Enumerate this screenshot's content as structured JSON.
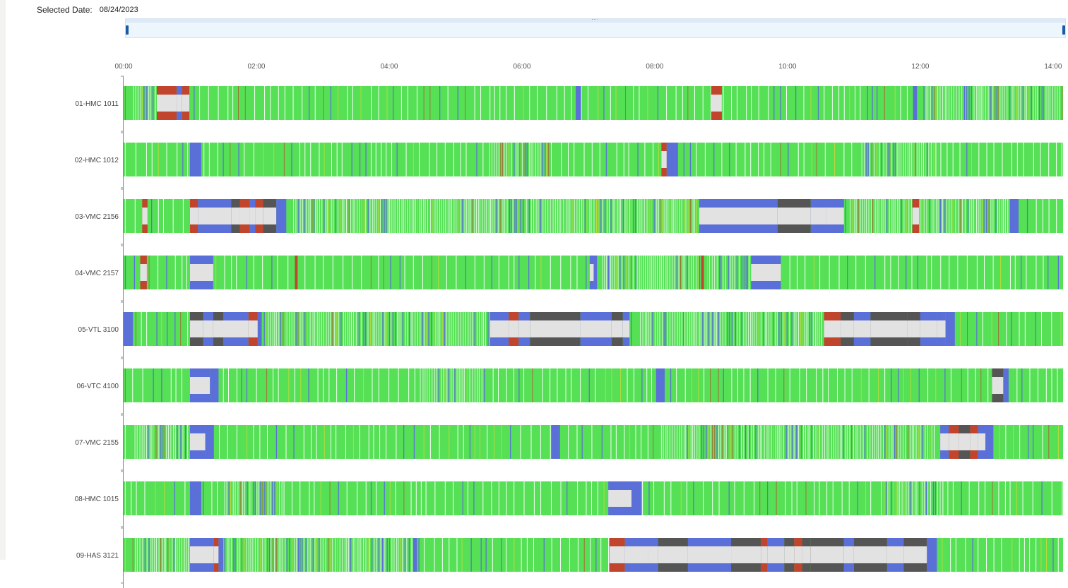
{
  "header": {
    "selected_date_label": "Selected Date:",
    "selected_date_value": "08/24/2023"
  },
  "colors": {
    "running": "#55e055",
    "idle_blue": "#5b6fd8",
    "alarm_red": "#c0452c",
    "setup_dark": "#555555",
    "off_light": "#e2e2e2",
    "yellow_flicker": "#c6d83a"
  },
  "chart_data": {
    "type": "timeline",
    "x_range_hours": [
      0,
      14.15
    ],
    "x_ticks": [
      {
        "h": 0,
        "label": "00:00"
      },
      {
        "h": 2,
        "label": "02:00"
      },
      {
        "h": 4,
        "label": "04:00"
      },
      {
        "h": 6,
        "label": "06:00"
      },
      {
        "h": 8,
        "label": "08:00"
      },
      {
        "h": 10,
        "label": "10:00"
      },
      {
        "h": 12,
        "label": "12:00"
      },
      {
        "h": 14,
        "label": "14:00"
      }
    ],
    "rows": [
      {
        "name": "01-HMC 1011",
        "segments": [
          {
            "s": 0.5,
            "e": 0.8,
            "top": "alarm_red",
            "mid": "off_light"
          },
          {
            "s": 0.8,
            "e": 0.88,
            "top": "idle_blue",
            "mid": "off_light"
          },
          {
            "s": 0.88,
            "e": 0.99,
            "top": "alarm_red",
            "mid": "off_light"
          },
          {
            "s": 6.81,
            "e": 6.89,
            "top": "idle_blue",
            "mid": "idle_blue"
          },
          {
            "s": 8.85,
            "e": 9.01,
            "top": "alarm_red",
            "mid": "off_light"
          },
          {
            "s": 11.89,
            "e": 11.95,
            "top": "idle_blue",
            "mid": "idle_blue"
          }
        ],
        "dense": [
          [
            0.05,
            0.45
          ],
          [
            11.95,
            14.15
          ]
        ]
      },
      {
        "name": "02-HMC 1012",
        "segments": [
          {
            "s": 1.0,
            "e": 1.17,
            "top": "idle_blue",
            "mid": "idle_blue"
          },
          {
            "s": 8.1,
            "e": 8.18,
            "top": "alarm_red",
            "mid": "off_light"
          },
          {
            "s": 8.18,
            "e": 8.35,
            "top": "idle_blue",
            "mid": "idle_blue"
          }
        ],
        "dense": [
          [
            5.5,
            6.4
          ],
          [
            11.1,
            12.2
          ]
        ]
      },
      {
        "name": "03-VMC 2156",
        "segments": [
          {
            "s": 0.28,
            "e": 0.36,
            "top": "alarm_red",
            "mid": "off_light"
          },
          {
            "s": 1.0,
            "e": 1.12,
            "top": "alarm_red",
            "mid": "off_light"
          },
          {
            "s": 1.12,
            "e": 1.62,
            "top": "idle_blue",
            "mid": "off_light"
          },
          {
            "s": 1.62,
            "e": 1.75,
            "top": "setup_dark",
            "mid": "off_light"
          },
          {
            "s": 1.75,
            "e": 1.9,
            "top": "alarm_red",
            "mid": "off_light"
          },
          {
            "s": 1.9,
            "e": 1.98,
            "top": "idle_blue",
            "mid": "off_light"
          },
          {
            "s": 1.98,
            "e": 2.1,
            "top": "alarm_red",
            "mid": "off_light"
          },
          {
            "s": 2.1,
            "e": 2.3,
            "top": "setup_dark",
            "mid": "off_light"
          },
          {
            "s": 2.3,
            "e": 2.45,
            "top": "idle_blue",
            "mid": "idle_blue"
          },
          {
            "s": 8.67,
            "e": 9.85,
            "top": "idle_blue",
            "mid": "off_light"
          },
          {
            "s": 9.85,
            "e": 10.35,
            "top": "setup_dark",
            "mid": "off_light"
          },
          {
            "s": 10.35,
            "e": 10.58,
            "top": "idle_blue",
            "mid": "off_light"
          },
          {
            "s": 10.58,
            "e": 10.85,
            "top": "idle_blue",
            "mid": "off_light"
          },
          {
            "s": 11.88,
            "e": 11.98,
            "top": "alarm_red",
            "mid": "off_light"
          },
          {
            "s": 13.35,
            "e": 13.48,
            "top": "idle_blue",
            "mid": "idle_blue"
          }
        ],
        "dense": [
          [
            2.45,
            8.6
          ],
          [
            10.9,
            13.3
          ]
        ]
      },
      {
        "name": "04-VMC 2157",
        "segments": [
          {
            "s": 0.25,
            "e": 0.35,
            "top": "alarm_red",
            "mid": "off_light"
          },
          {
            "s": 1.0,
            "e": 1.35,
            "top": "idle_blue",
            "mid": "off_light"
          },
          {
            "s": 2.58,
            "e": 2.62,
            "top": "alarm_red",
            "mid": "alarm_red"
          },
          {
            "s": 7.02,
            "e": 7.08,
            "top": "idle_blue",
            "mid": "off_light"
          },
          {
            "s": 7.08,
            "e": 7.13,
            "top": "idle_blue",
            "mid": "idle_blue"
          },
          {
            "s": 8.7,
            "e": 8.74,
            "top": "alarm_red",
            "mid": "alarm_red"
          },
          {
            "s": 9.45,
            "e": 9.9,
            "top": "idle_blue",
            "mid": "off_light"
          }
        ],
        "dense": [
          [
            7.15,
            8.65
          ],
          [
            8.75,
            9.4
          ]
        ]
      },
      {
        "name": "05-VTL 3100",
        "segments": [
          {
            "s": 0.0,
            "e": 0.14,
            "top": "idle_blue",
            "mid": "idle_blue"
          },
          {
            "s": 1.0,
            "e": 1.2,
            "top": "setup_dark",
            "mid": "off_light"
          },
          {
            "s": 1.2,
            "e": 1.35,
            "top": "idle_blue",
            "mid": "off_light"
          },
          {
            "s": 1.35,
            "e": 1.5,
            "top": "setup_dark",
            "mid": "off_light"
          },
          {
            "s": 1.5,
            "e": 1.88,
            "top": "idle_blue",
            "mid": "off_light"
          },
          {
            "s": 1.88,
            "e": 2.02,
            "top": "alarm_red",
            "mid": "off_light"
          },
          {
            "s": 2.02,
            "e": 2.08,
            "top": "idle_blue",
            "mid": "idle_blue"
          },
          {
            "s": 5.52,
            "e": 5.8,
            "top": "idle_blue",
            "mid": "off_light"
          },
          {
            "s": 5.8,
            "e": 5.95,
            "top": "alarm_red",
            "mid": "off_light"
          },
          {
            "s": 5.95,
            "e": 6.12,
            "top": "idle_blue",
            "mid": "off_light"
          },
          {
            "s": 6.12,
            "e": 6.88,
            "top": "setup_dark",
            "mid": "off_light"
          },
          {
            "s": 6.88,
            "e": 7.35,
            "top": "idle_blue",
            "mid": "off_light"
          },
          {
            "s": 7.35,
            "e": 7.52,
            "top": "setup_dark",
            "mid": "off_light"
          },
          {
            "s": 7.52,
            "e": 7.62,
            "top": "idle_blue",
            "mid": "off_light"
          },
          {
            "s": 10.55,
            "e": 10.8,
            "top": "alarm_red",
            "mid": "off_light"
          },
          {
            "s": 10.8,
            "e": 11.0,
            "top": "setup_dark",
            "mid": "off_light"
          },
          {
            "s": 11.0,
            "e": 11.25,
            "top": "idle_blue",
            "mid": "off_light"
          },
          {
            "s": 11.25,
            "e": 11.8,
            "top": "setup_dark",
            "mid": "off_light"
          },
          {
            "s": 11.8,
            "e": 12.0,
            "top": "setup_dark",
            "mid": "off_light"
          },
          {
            "s": 12.0,
            "e": 12.25,
            "top": "idle_blue",
            "mid": "off_light"
          },
          {
            "s": 12.25,
            "e": 12.38,
            "top": "idle_blue",
            "mid": "off_light"
          },
          {
            "s": 12.38,
            "e": 12.52,
            "top": "idle_blue",
            "mid": "idle_blue"
          }
        ],
        "dense": [
          [
            2.1,
            5.45
          ],
          [
            7.7,
            10.5
          ]
        ]
      },
      {
        "name": "06-VTC 4100",
        "segments": [
          {
            "s": 1.0,
            "e": 1.3,
            "top": "idle_blue",
            "mid": "off_light"
          },
          {
            "s": 1.3,
            "e": 1.43,
            "top": "idle_blue",
            "mid": "idle_blue"
          },
          {
            "s": 8.02,
            "e": 8.15,
            "top": "idle_blue",
            "mid": "idle_blue"
          },
          {
            "s": 13.08,
            "e": 13.25,
            "top": "setup_dark",
            "mid": "off_light"
          },
          {
            "s": 13.25,
            "e": 13.33,
            "top": "idle_blue",
            "mid": "idle_blue"
          }
        ],
        "dense": [
          [
            4.4,
            5.4
          ]
        ]
      },
      {
        "name": "07-VMC 2155",
        "segments": [
          {
            "s": 1.0,
            "e": 1.23,
            "top": "idle_blue",
            "mid": "off_light"
          },
          {
            "s": 1.23,
            "e": 1.36,
            "top": "idle_blue",
            "mid": "idle_blue"
          },
          {
            "s": 6.44,
            "e": 6.56,
            "top": "idle_blue",
            "mid": "idle_blue"
          },
          {
            "s": 12.3,
            "e": 12.43,
            "top": "idle_blue",
            "mid": "off_light"
          },
          {
            "s": 12.43,
            "e": 12.58,
            "top": "alarm_red",
            "mid": "off_light"
          },
          {
            "s": 12.58,
            "e": 12.75,
            "top": "setup_dark",
            "mid": "off_light"
          },
          {
            "s": 12.75,
            "e": 12.87,
            "top": "alarm_red",
            "mid": "off_light"
          },
          {
            "s": 12.87,
            "e": 12.98,
            "top": "idle_blue",
            "mid": "off_light"
          },
          {
            "s": 12.98,
            "e": 13.1,
            "top": "idle_blue",
            "mid": "idle_blue"
          }
        ],
        "dense": [
          [
            0.05,
            0.95
          ],
          [
            8.0,
            12.2
          ]
        ]
      },
      {
        "name": "08-HMC 1015",
        "segments": [
          {
            "s": 1.0,
            "e": 1.17,
            "top": "idle_blue",
            "mid": "idle_blue"
          },
          {
            "s": 7.3,
            "e": 7.65,
            "top": "idle_blue",
            "mid": "off_light"
          },
          {
            "s": 7.65,
            "e": 7.8,
            "top": "idle_blue",
            "mid": "idle_blue"
          }
        ],
        "dense": [
          [
            1.5,
            2.4
          ],
          [
            11.3,
            12.3
          ]
        ]
      },
      {
        "name": "09-HAS 3121",
        "segments": [
          {
            "s": 1.0,
            "e": 1.36,
            "top": "idle_blue",
            "mid": "off_light"
          },
          {
            "s": 1.36,
            "e": 1.43,
            "top": "alarm_red",
            "mid": "off_light"
          },
          {
            "s": 1.43,
            "e": 1.5,
            "top": "idle_blue",
            "mid": "idle_blue"
          },
          {
            "s": 4.36,
            "e": 4.42,
            "top": "idle_blue",
            "mid": "idle_blue"
          },
          {
            "s": 7.32,
            "e": 7.55,
            "top": "alarm_red",
            "mid": "off_light"
          },
          {
            "s": 7.55,
            "e": 7.9,
            "top": "idle_blue",
            "mid": "off_light"
          },
          {
            "s": 7.9,
            "e": 8.05,
            "top": "idle_blue",
            "mid": "off_light"
          },
          {
            "s": 8.05,
            "e": 8.5,
            "top": "setup_dark",
            "mid": "off_light"
          },
          {
            "s": 8.5,
            "e": 9.15,
            "top": "idle_blue",
            "mid": "off_light"
          },
          {
            "s": 9.15,
            "e": 9.6,
            "top": "setup_dark",
            "mid": "off_light"
          },
          {
            "s": 9.6,
            "e": 9.7,
            "top": "alarm_red",
            "mid": "off_light"
          },
          {
            "s": 9.7,
            "e": 9.95,
            "top": "idle_blue",
            "mid": "off_light"
          },
          {
            "s": 9.95,
            "e": 10.1,
            "top": "setup_dark",
            "mid": "off_light"
          },
          {
            "s": 10.1,
            "e": 10.22,
            "top": "alarm_red",
            "mid": "off_light"
          },
          {
            "s": 10.22,
            "e": 10.35,
            "top": "setup_dark",
            "mid": "off_light"
          },
          {
            "s": 10.35,
            "e": 10.85,
            "top": "setup_dark",
            "mid": "off_light"
          },
          {
            "s": 10.85,
            "e": 11.0,
            "top": "idle_blue",
            "mid": "off_light"
          },
          {
            "s": 11.0,
            "e": 11.5,
            "top": "setup_dark",
            "mid": "off_light"
          },
          {
            "s": 11.5,
            "e": 11.75,
            "top": "idle_blue",
            "mid": "off_light"
          },
          {
            "s": 11.75,
            "e": 12.1,
            "top": "setup_dark",
            "mid": "off_light"
          },
          {
            "s": 12.1,
            "e": 12.25,
            "top": "idle_blue",
            "mid": "idle_blue"
          }
        ],
        "dense": [
          [
            0.05,
            0.95
          ],
          [
            1.5,
            4.3
          ]
        ]
      }
    ]
  }
}
